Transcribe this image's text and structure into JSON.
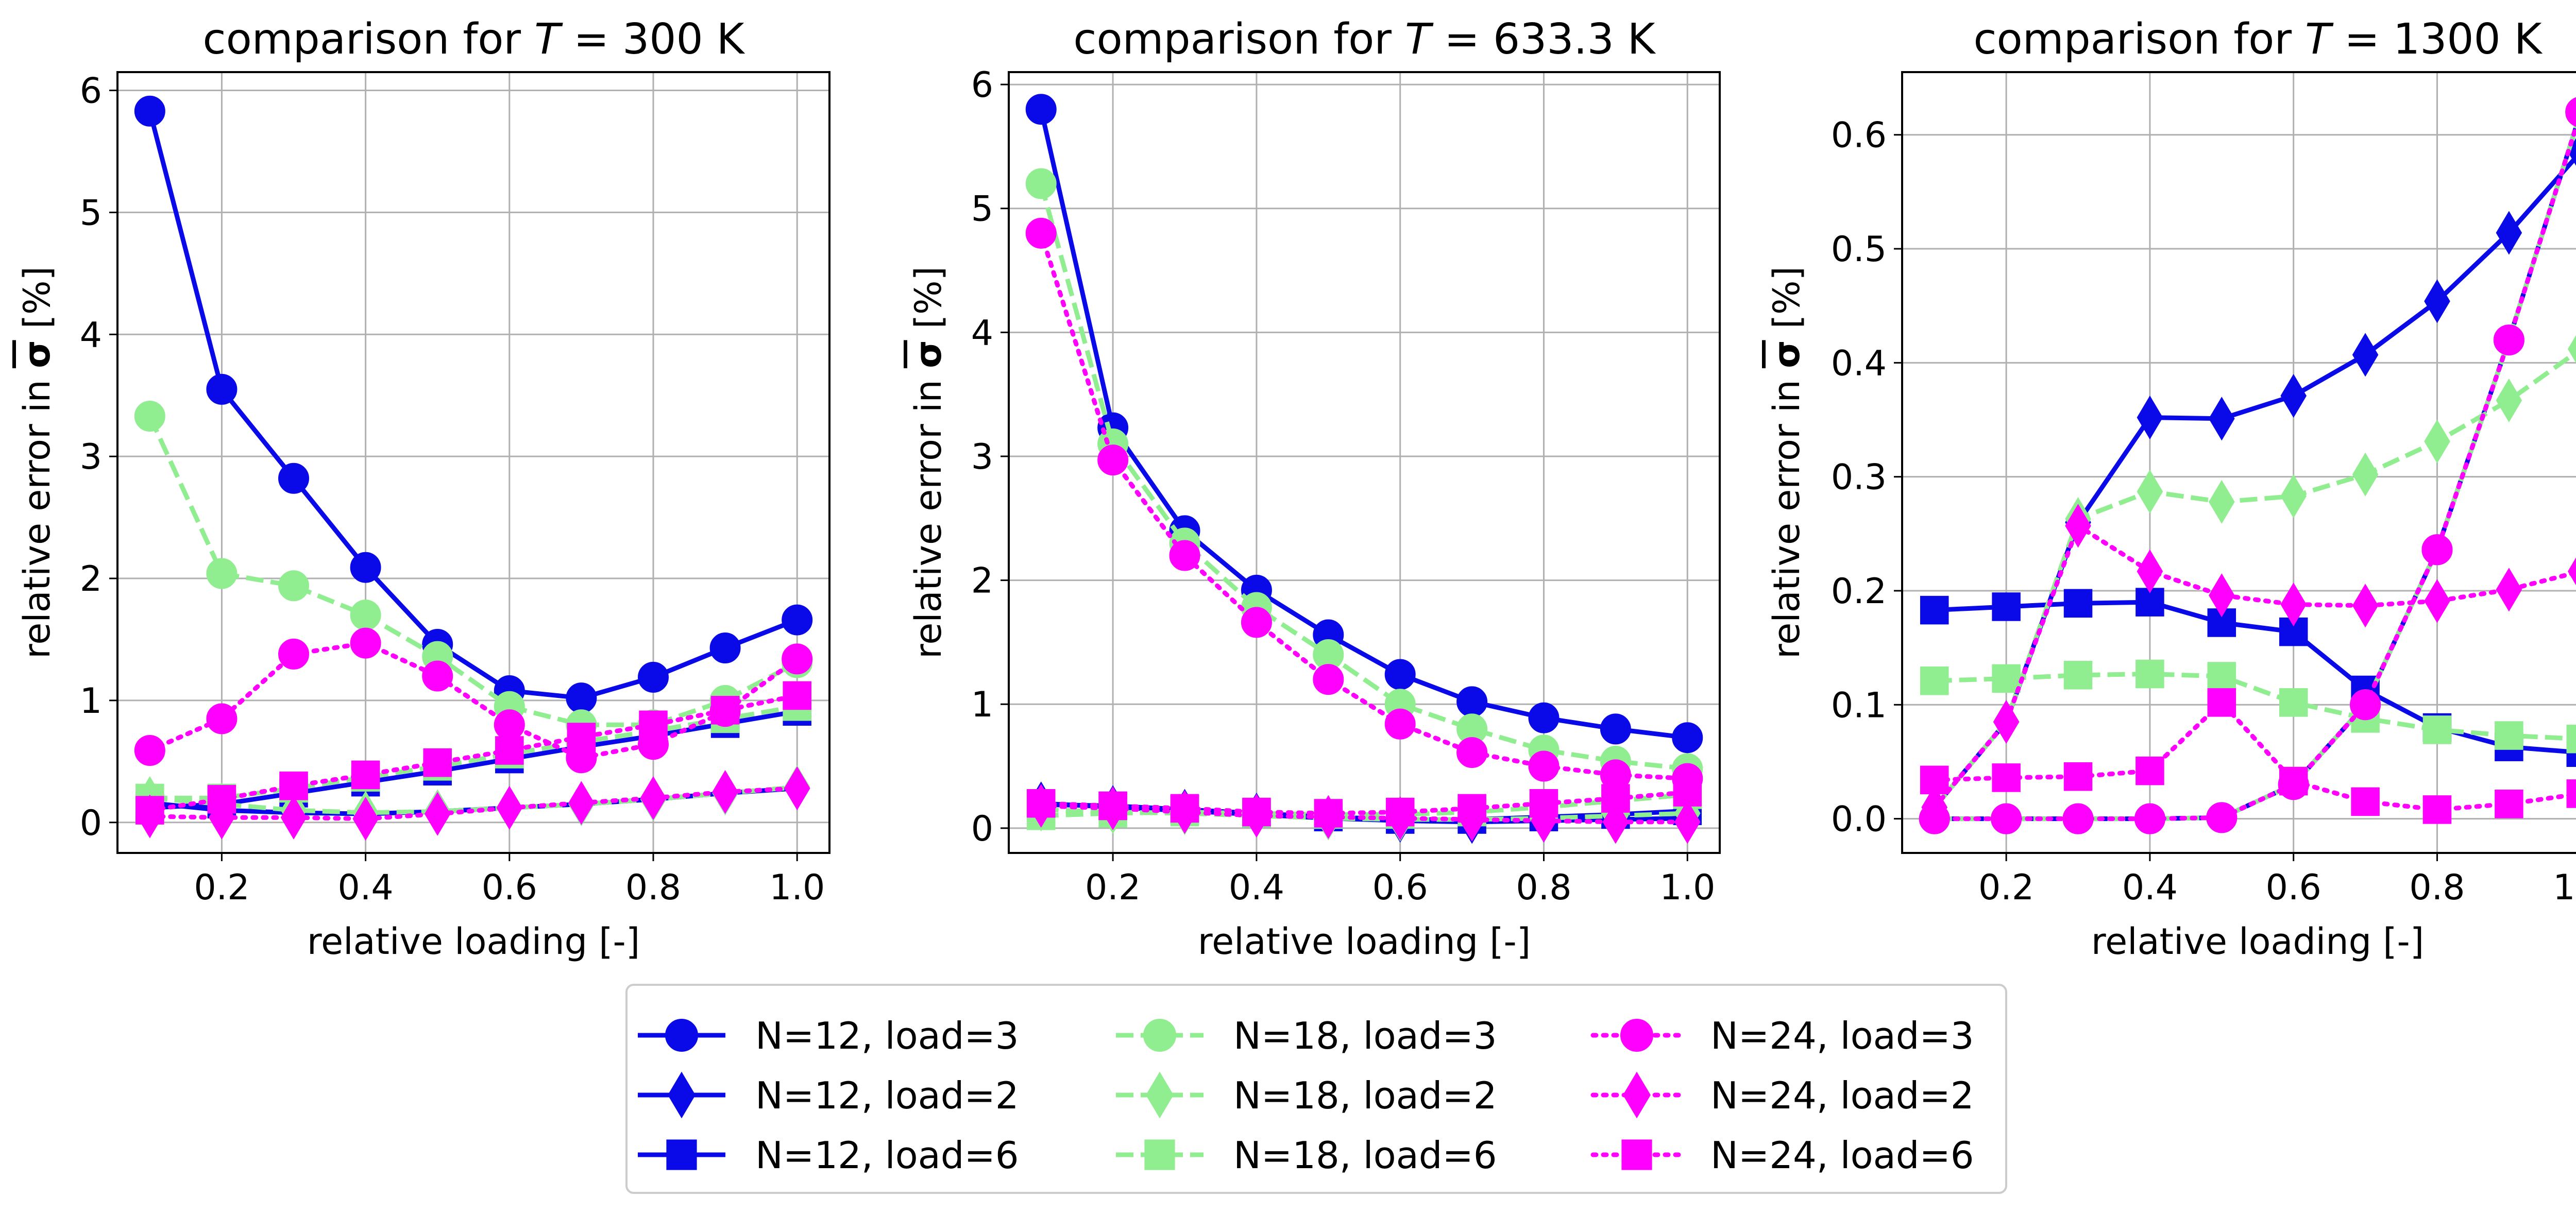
{
  "chart_data": {
    "type": "line",
    "x": [
      0.1,
      0.2,
      0.3,
      0.4,
      0.5,
      0.6,
      0.7,
      0.8,
      0.9,
      1.0
    ],
    "xlabel": "relative loading [-]",
    "ylabel_prefix": "relative error in",
    "ylabel_symbol": "σ",
    "ylabel_suffix": "[%]",
    "x_ticks": [
      "0.2",
      "0.4",
      "0.6",
      "0.8",
      "1.0"
    ],
    "grid": true,
    "legend_position": "bottom-center",
    "series_styles": [
      {
        "name": "N=12, load=3",
        "color": "#0a0ae8",
        "line": "solid",
        "marker": "circle"
      },
      {
        "name": "N=12, load=2",
        "color": "#0a0ae8",
        "line": "solid",
        "marker": "diamond"
      },
      {
        "name": "N=12, load=6",
        "color": "#0a0ae8",
        "line": "solid",
        "marker": "square"
      },
      {
        "name": "N=18, load=3",
        "color": "#90ee90",
        "line": "dashed",
        "marker": "circle"
      },
      {
        "name": "N=18, load=2",
        "color": "#90ee90",
        "line": "dashed",
        "marker": "diamond"
      },
      {
        "name": "N=18, load=6",
        "color": "#90ee90",
        "line": "dashed",
        "marker": "square"
      },
      {
        "name": "N=24, load=3",
        "color": "#ff00ff",
        "line": "dotted",
        "marker": "circle"
      },
      {
        "name": "N=24, load=2",
        "color": "#ff00ff",
        "line": "dotted",
        "marker": "diamond"
      },
      {
        "name": "N=24, load=6",
        "color": "#ff00ff",
        "line": "dotted",
        "marker": "square"
      }
    ],
    "panels": [
      {
        "title_prefix": "comparison for ",
        "title_var": "T",
        "title_suffix": " = 300 K",
        "ylim": [
          -0.25,
          6.15
        ],
        "y_ticks": [
          0,
          1,
          2,
          3,
          4,
          5,
          6
        ],
        "y_tick_labels": [
          "0",
          "1",
          "2",
          "3",
          "4",
          "5",
          "6"
        ],
        "series": [
          [
            5.83,
            3.55,
            2.82,
            2.09,
            1.46,
            1.08,
            1.02,
            1.19,
            1.43,
            1.66
          ],
          [
            0.16,
            0.1,
            0.08,
            0.07,
            0.09,
            0.12,
            0.15,
            0.19,
            0.24,
            0.28
          ],
          [
            0.12,
            0.15,
            0.24,
            0.33,
            0.42,
            0.52,
            0.62,
            0.71,
            0.81,
            0.91
          ],
          [
            3.33,
            2.04,
            1.94,
            1.7,
            1.36,
            0.95,
            0.8,
            0.8,
            1.0,
            1.31
          ],
          [
            0.2,
            0.15,
            0.1,
            0.08,
            0.09,
            0.12,
            0.15,
            0.19,
            0.24,
            0.29
          ],
          [
            0.2,
            0.2,
            0.28,
            0.37,
            0.46,
            0.56,
            0.66,
            0.75,
            0.85,
            0.95
          ],
          [
            0.59,
            0.85,
            1.38,
            1.47,
            1.2,
            0.8,
            0.53,
            0.64,
            0.91,
            1.34
          ],
          [
            0.05,
            0.04,
            0.04,
            0.03,
            0.07,
            0.12,
            0.16,
            0.2,
            0.25,
            0.28
          ],
          [
            0.1,
            0.19,
            0.3,
            0.39,
            0.49,
            0.59,
            0.7,
            0.8,
            0.92,
            1.04
          ]
        ]
      },
      {
        "title_prefix": "comparison for ",
        "title_var": "T",
        "title_suffix": " = 633.3 K",
        "ylim": [
          -0.2,
          6.1
        ],
        "y_ticks": [
          0,
          1,
          2,
          3,
          4,
          5,
          6
        ],
        "y_tick_labels": [
          "0",
          "1",
          "2",
          "3",
          "4",
          "5",
          "6"
        ],
        "series": [
          [
            5.8,
            3.23,
            2.4,
            1.92,
            1.56,
            1.24,
            1.02,
            0.89,
            0.8,
            0.73
          ],
          [
            0.2,
            0.17,
            0.14,
            0.11,
            0.08,
            0.06,
            0.05,
            0.06,
            0.07,
            0.08
          ],
          [
            0.19,
            0.18,
            0.15,
            0.12,
            0.09,
            0.07,
            0.07,
            0.09,
            0.11,
            0.14
          ],
          [
            5.2,
            3.1,
            2.3,
            1.78,
            1.4,
            1.0,
            0.8,
            0.63,
            0.54,
            0.48
          ],
          [
            0.15,
            0.13,
            0.12,
            0.1,
            0.08,
            0.07,
            0.07,
            0.08,
            0.1,
            0.12
          ],
          [
            0.1,
            0.12,
            0.13,
            0.12,
            0.11,
            0.11,
            0.13,
            0.17,
            0.22,
            0.27
          ],
          [
            4.8,
            2.97,
            2.2,
            1.66,
            1.2,
            0.84,
            0.61,
            0.5,
            0.43,
            0.4
          ],
          [
            0.18,
            0.16,
            0.13,
            0.1,
            0.09,
            0.08,
            0.07,
            0.06,
            0.05,
            0.05
          ],
          [
            0.2,
            0.18,
            0.16,
            0.13,
            0.12,
            0.13,
            0.16,
            0.2,
            0.24,
            0.29
          ]
        ]
      },
      {
        "title_prefix": "comparison for ",
        "title_var": "T",
        "title_suffix": " = 1300 K",
        "ylim": [
          -0.03,
          0.655
        ],
        "y_ticks": [
          0,
          0.1,
          0.2,
          0.3,
          0.4,
          0.5,
          0.6
        ],
        "y_tick_labels": [
          "0.0",
          "0.1",
          "0.2",
          "0.3",
          "0.4",
          "0.5",
          "0.6"
        ],
        "series": [
          [
            0.0,
            0.0,
            0.0,
            0.0,
            0.001,
            0.03,
            0.1,
            0.236,
            0.42,
            0.62
          ],
          [
            0.01,
            0.085,
            0.26,
            0.352,
            0.351,
            0.371,
            0.407,
            0.454,
            0.514,
            0.585
          ],
          [
            0.183,
            0.186,
            0.189,
            0.19,
            0.172,
            0.164,
            0.113,
            0.08,
            0.063,
            0.058
          ],
          [
            0.0,
            0.0,
            0.0,
            0.0,
            0.001,
            0.03,
            0.1,
            0.236,
            0.42,
            0.62
          ],
          [
            0.01,
            0.085,
            0.263,
            0.287,
            0.278,
            0.283,
            0.302,
            0.331,
            0.367,
            0.412
          ],
          [
            0.121,
            0.123,
            0.126,
            0.127,
            0.125,
            0.102,
            0.088,
            0.078,
            0.073,
            0.07
          ],
          [
            0.0,
            0.0,
            0.0,
            0.0,
            0.001,
            0.03,
            0.1,
            0.236,
            0.42,
            0.62
          ],
          [
            0.01,
            0.085,
            0.257,
            0.217,
            0.196,
            0.188,
            0.187,
            0.191,
            0.201,
            0.217
          ],
          [
            0.034,
            0.036,
            0.037,
            0.042,
            0.102,
            0.033,
            0.015,
            0.008,
            0.013,
            0.022
          ]
        ]
      }
    ]
  }
}
